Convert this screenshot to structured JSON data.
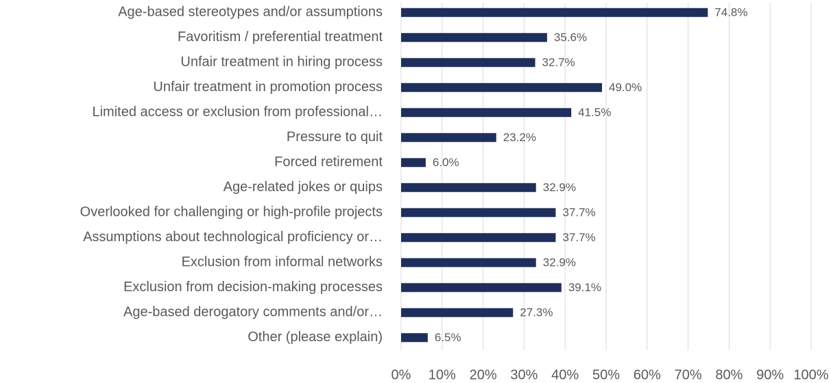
{
  "chart_data": {
    "type": "bar",
    "orientation": "horizontal",
    "categories": [
      "Age-based stereotypes and/or assumptions",
      "Favoritism / preferential treatment",
      "Unfair treatment in hiring process",
      "Unfair treatment in promotion process",
      "Limited access or exclusion from professional…",
      "Pressure to quit",
      "Forced retirement",
      "Age-related jokes or quips",
      "Overlooked for challenging or high-profile projects",
      "Assumptions about technological proficiency or…",
      "Exclusion from informal networks",
      "Exclusion from decision-making processes",
      "Age-based derogatory comments and/or…",
      "Other (please explain)"
    ],
    "values": [
      74.8,
      35.6,
      32.7,
      49.0,
      41.5,
      23.2,
      6.0,
      32.9,
      37.7,
      37.7,
      32.9,
      39.1,
      27.3,
      6.5
    ],
    "value_labels": [
      "74.8%",
      "35.6%",
      "32.7%",
      "49.0%",
      "41.5%",
      "23.2%",
      "6.0%",
      "32.9%",
      "37.7%",
      "37.7%",
      "32.9%",
      "39.1%",
      "27.3%",
      "6.5%"
    ],
    "color": "#1f2f5c",
    "xlim": [
      0,
      100
    ],
    "xticks": [
      {
        "value": 0,
        "label": "0%"
      },
      {
        "value": 10,
        "label": "10%"
      },
      {
        "value": 20,
        "label": "20%"
      },
      {
        "value": 30,
        "label": "30%"
      },
      {
        "value": 40,
        "label": "40%"
      },
      {
        "value": 50,
        "label": "50%"
      },
      {
        "value": 60,
        "label": "60%"
      },
      {
        "value": 70,
        "label": "70%"
      },
      {
        "value": 80,
        "label": "80%"
      },
      {
        "value": 90,
        "label": "90%"
      },
      {
        "value": 100,
        "label": "100%"
      }
    ],
    "grid": true
  }
}
